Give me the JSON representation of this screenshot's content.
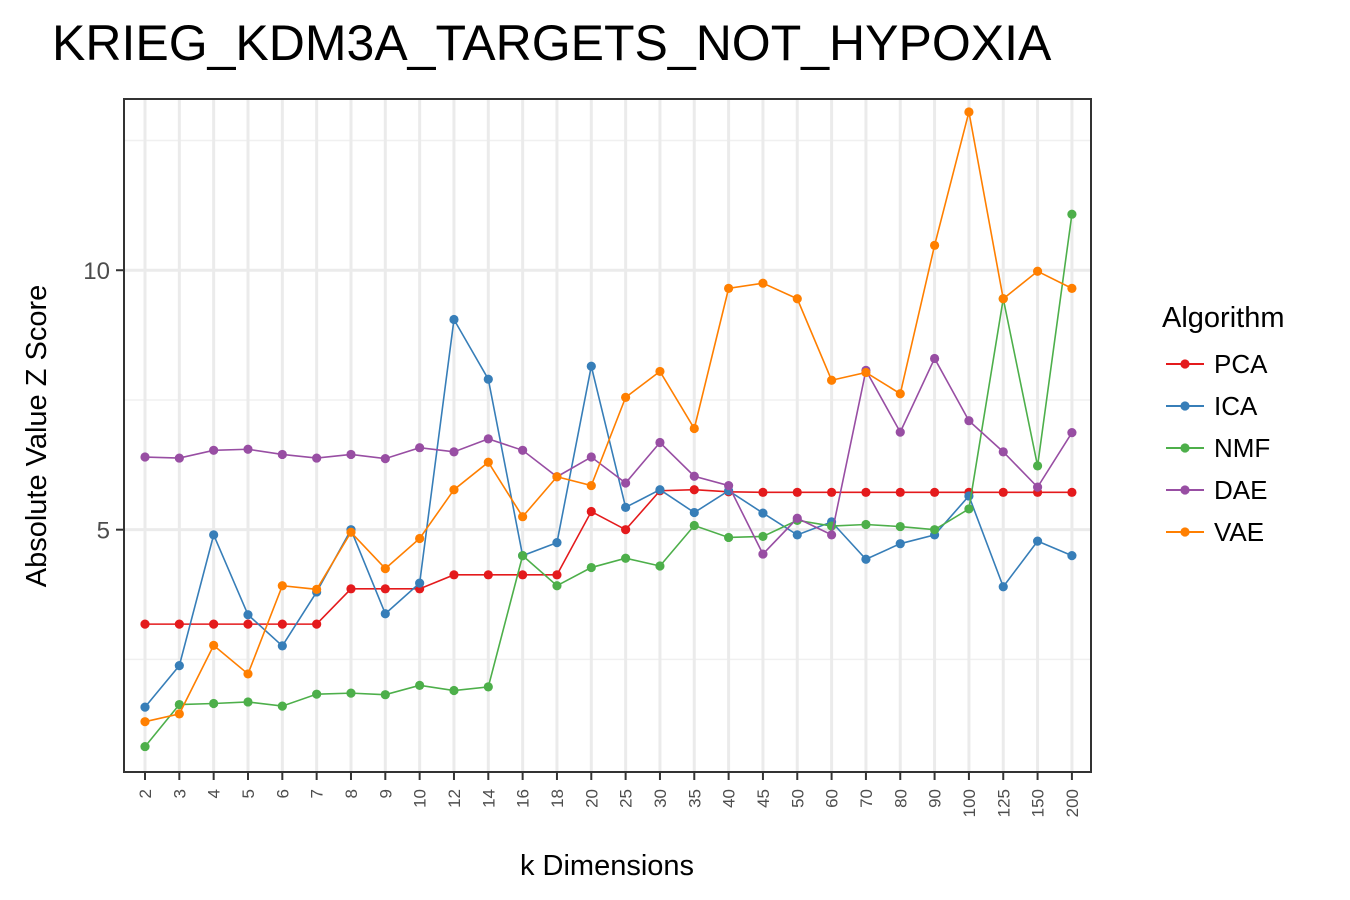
{
  "chart_data": {
    "type": "line",
    "title": "KRIEG_KDM3A_TARGETS_NOT_HYPOXIA",
    "xlabel": "k Dimensions",
    "ylabel": "Absolute Value Z Score",
    "categories": [
      "2",
      "3",
      "4",
      "5",
      "6",
      "7",
      "8",
      "9",
      "10",
      "12",
      "14",
      "16",
      "18",
      "20",
      "25",
      "30",
      "35",
      "40",
      "45",
      "50",
      "60",
      "70",
      "80",
      "90",
      "100",
      "125",
      "150",
      "200"
    ],
    "y_ticks": [
      5,
      10
    ],
    "ylim": [
      0.33,
      13.3
    ],
    "grid": true,
    "legend_title": "Algorithm",
    "legend_position": "right",
    "series": [
      {
        "name": "PCA",
        "color": "#E41A1C",
        "values": [
          3.18,
          3.18,
          3.18,
          3.18,
          3.18,
          3.18,
          3.86,
          3.86,
          3.86,
          4.13,
          4.13,
          4.13,
          4.13,
          5.35,
          5.0,
          5.75,
          5.77,
          5.73,
          5.72,
          5.72,
          5.72,
          5.72,
          5.72,
          5.72,
          5.72,
          5.72,
          5.72,
          5.72
        ]
      },
      {
        "name": "ICA",
        "color": "#377EB8",
        "values": [
          1.58,
          2.38,
          4.9,
          3.36,
          2.76,
          3.8,
          5.0,
          3.38,
          3.97,
          9.05,
          7.9,
          4.5,
          4.75,
          8.15,
          5.43,
          5.77,
          5.33,
          5.75,
          5.32,
          4.9,
          5.15,
          4.43,
          4.73,
          4.9,
          5.65,
          3.9,
          4.78,
          4.5
        ]
      },
      {
        "name": "NMF",
        "color": "#4DAF4A",
        "values": [
          0.82,
          1.63,
          1.65,
          1.68,
          1.6,
          1.83,
          1.85,
          1.82,
          2.0,
          1.9,
          1.97,
          4.5,
          3.92,
          4.27,
          4.45,
          4.3,
          5.08,
          4.85,
          4.87,
          5.18,
          5.07,
          5.1,
          5.06,
          5.0,
          5.4,
          9.45,
          6.23,
          11.08
        ]
      },
      {
        "name": "DAE",
        "color": "#984EA3",
        "values": [
          6.4,
          6.38,
          6.53,
          6.55,
          6.45,
          6.38,
          6.45,
          6.37,
          6.58,
          6.5,
          6.75,
          6.53,
          6.02,
          6.4,
          5.9,
          6.68,
          6.03,
          5.85,
          4.53,
          5.22,
          4.9,
          8.07,
          6.88,
          8.3,
          7.1,
          6.5,
          5.82,
          6.87
        ]
      },
      {
        "name": "VAE",
        "color": "#FF7F00",
        "values": [
          1.3,
          1.45,
          2.77,
          2.22,
          3.92,
          3.85,
          4.95,
          4.25,
          4.83,
          5.77,
          6.3,
          5.25,
          6.02,
          5.85,
          7.55,
          8.05,
          6.95,
          9.65,
          9.75,
          9.45,
          7.88,
          8.03,
          7.62,
          10.48,
          13.05,
          9.45,
          9.98,
          9.65
        ]
      }
    ]
  }
}
